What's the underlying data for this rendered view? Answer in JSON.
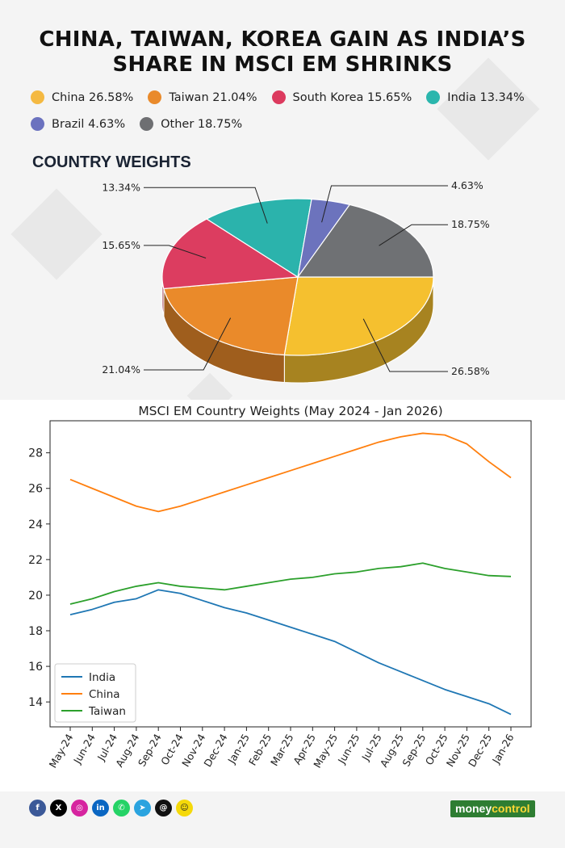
{
  "header": {
    "title_line1": "CHINA, TAIWAN, KOREA GAIN AS INDIA’S",
    "title_line2": "SHARE IN MSCI EM SHRINKS"
  },
  "legend": [
    {
      "label": "China 26.58%",
      "color": "#f4b942"
    },
    {
      "label": "Taiwan 21.04%",
      "color": "#e98a2b"
    },
    {
      "label": "South Korea 15.65%",
      "color": "#dc3a5e"
    },
    {
      "label": "India 13.34%",
      "color": "#2bb6ad"
    },
    {
      "label": "Brazil 4.63%",
      "color": "#6b72bf"
    },
    {
      "label": "Other 18.75%",
      "color": "#6e6f72"
    }
  ],
  "section_title": "COUNTRY WEIGHTS",
  "chart_data": [
    {
      "type": "pie",
      "style": "3d",
      "categories": [
        "China",
        "Taiwan",
        "South Korea",
        "India",
        "Brazil",
        "Other"
      ],
      "values": [
        26.58,
        21.04,
        15.65,
        13.34,
        4.63,
        18.75
      ],
      "labels": [
        "26.58%",
        "21.04%",
        "15.65%",
        "13.34%",
        "4.63%",
        "18.75%"
      ],
      "colors": [
        "#f5c02f",
        "#ea8a2a",
        "#dc3d60",
        "#2bb3ac",
        "#6c73bd",
        "#6f7174"
      ]
    },
    {
      "type": "line",
      "title": "MSCI EM Country Weights (May 2024 - Jan 2026)",
      "x": [
        "May-24",
        "Jun-24",
        "Jul-24",
        "Aug-24",
        "Sep-24",
        "Oct-24",
        "Nov-24",
        "Dec-24",
        "Jan-25",
        "Feb-25",
        "Mar-25",
        "Apr-25",
        "May-25",
        "Jun-25",
        "Jul-25",
        "Aug-25",
        "Sep-25",
        "Oct-25",
        "Nov-25",
        "Dec-25",
        "Jan-26"
      ],
      "series": [
        {
          "name": "India",
          "color": "#1f77b4",
          "values": [
            18.9,
            19.2,
            19.6,
            19.8,
            20.3,
            20.1,
            19.7,
            19.3,
            19.0,
            18.6,
            18.2,
            17.8,
            17.4,
            16.8,
            16.2,
            15.7,
            15.2,
            14.7,
            14.3,
            13.9,
            13.3
          ]
        },
        {
          "name": "China",
          "color": "#ff7f0e",
          "values": [
            26.5,
            26.0,
            25.5,
            25.0,
            24.7,
            25.0,
            25.4,
            25.8,
            26.2,
            26.6,
            27.0,
            27.4,
            27.8,
            28.2,
            28.6,
            28.9,
            29.1,
            29.0,
            28.5,
            27.5,
            26.6
          ]
        },
        {
          "name": "Taiwan",
          "color": "#2ca02c",
          "values": [
            19.5,
            19.8,
            20.2,
            20.5,
            20.7,
            20.5,
            20.4,
            20.3,
            20.5,
            20.7,
            20.9,
            21.0,
            21.2,
            21.3,
            21.5,
            21.6,
            21.8,
            21.5,
            21.3,
            21.1,
            21.05
          ]
        }
      ],
      "yticks": [
        14,
        16,
        18,
        20,
        22,
        24,
        26,
        28
      ],
      "ylim": [
        12.6,
        29.8
      ],
      "grid": false,
      "legend_position": "lower-left"
    }
  ],
  "footer": {
    "social_icons": [
      {
        "name": "facebook-icon",
        "glyph": "f",
        "color": "#3b5998"
      },
      {
        "name": "x-icon",
        "glyph": "X",
        "color": "#000000"
      },
      {
        "name": "instagram-icon",
        "glyph": "◎",
        "color": "#d6249f"
      },
      {
        "name": "linkedin-icon",
        "glyph": "in",
        "color": "#0a66c2"
      },
      {
        "name": "whatsapp-icon",
        "glyph": "✆",
        "color": "#25d366"
      },
      {
        "name": "telegram-icon",
        "glyph": "➤",
        "color": "#2aa3df"
      },
      {
        "name": "threads-icon",
        "glyph": "@",
        "color": "#111111"
      },
      {
        "name": "snapchat-icon",
        "glyph": "☺",
        "color": "#f5d90a"
      }
    ],
    "brand_part1": "money",
    "brand_part2": "control"
  }
}
